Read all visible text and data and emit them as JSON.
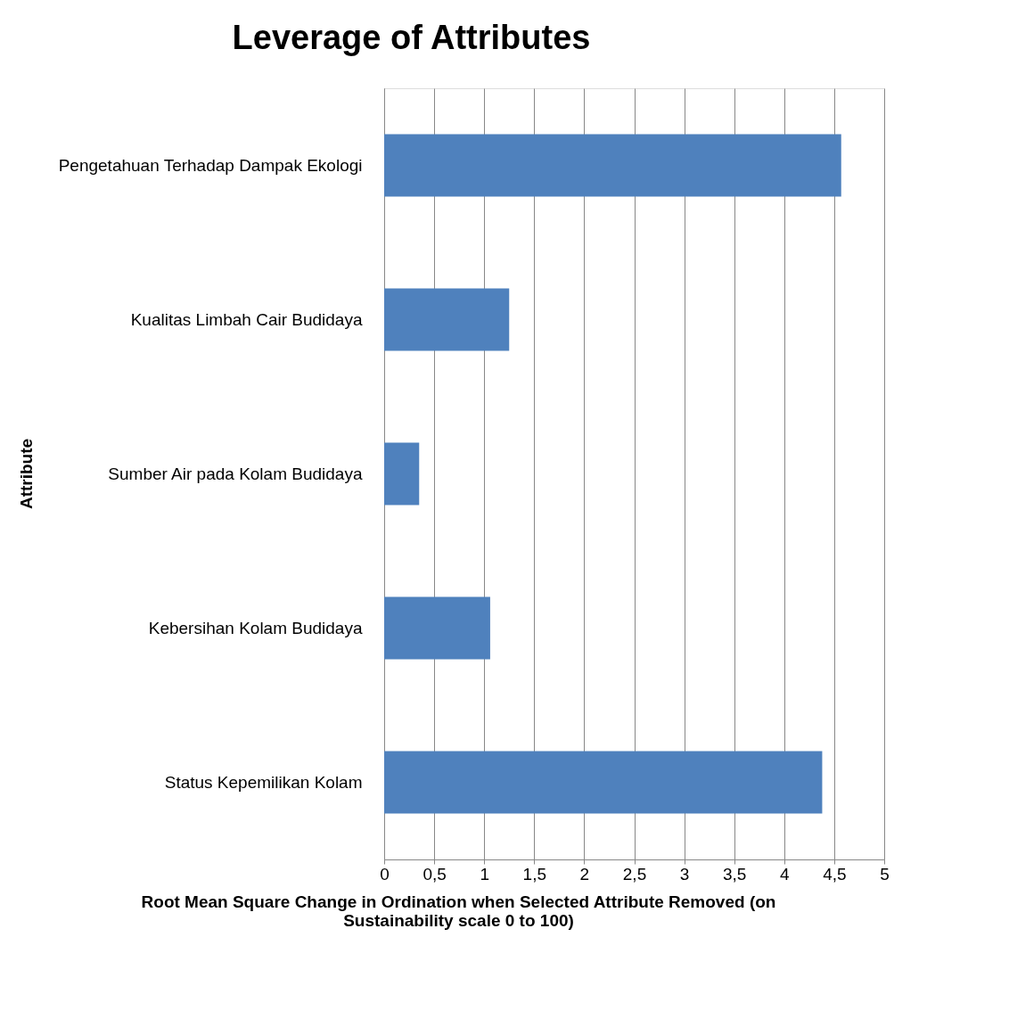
{
  "chart_data": {
    "type": "bar",
    "orientation": "horizontal",
    "title": "Leverage of Attributes",
    "xlabel": "Root Mean Square Change in Ordination when Selected Attribute Removed (on\nSustainability scale 0 to 100)",
    "ylabel": "Attribute",
    "categories": [
      "Pengetahuan  Terhadap Dampak Ekologi",
      "Kualitas Limbah Cair Budidaya",
      "Sumber Air pada Kolam Budidaya",
      "Kebersihan Kolam Budidaya",
      "Status Kepemilikan Kolam"
    ],
    "values": [
      4.57,
      1.25,
      0.35,
      1.06,
      4.38
    ],
    "color": "#4f81bd",
    "xlim": [
      0,
      5
    ],
    "xticks": [
      0,
      {
        "value": 0.5,
        "label": "0,5"
      },
      1,
      {
        "value": 1.5,
        "label": "1,5"
      },
      2,
      {
        "value": 2.5,
        "label": "2,5"
      },
      3,
      {
        "value": 3.5,
        "label": "3,5"
      },
      4,
      {
        "value": 4.5,
        "label": "4,5"
      },
      5
    ],
    "grid": "x"
  }
}
